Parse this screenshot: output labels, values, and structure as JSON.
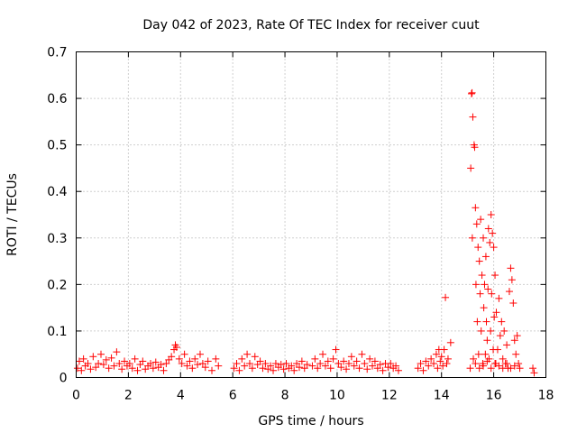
{
  "chart_data": {
    "type": "scatter",
    "title": "Day 042 of 2023, Rate Of TEC Index for receiver cuut",
    "xlabel": "GPS time / hours",
    "ylabel": "ROTI / TECUs",
    "xlim": [
      0,
      18
    ],
    "ylim": [
      0,
      0.7
    ],
    "xticks": [
      0,
      2,
      4,
      6,
      8,
      10,
      12,
      14,
      16,
      18
    ],
    "yticks": [
      0,
      0.1,
      0.2,
      0.3,
      0.4,
      0.5,
      0.6,
      0.7
    ],
    "xtick_labels": [
      "0",
      "2",
      "4",
      "6",
      "8",
      "10",
      "12",
      "14",
      "16",
      "18"
    ],
    "ytick_labels": [
      "0",
      "0.1",
      "0.2",
      "0.3",
      "0.4",
      "0.5",
      "0.6",
      "0.7"
    ],
    "grid": true,
    "marker": "+",
    "color": "#ff0000",
    "series": [
      {
        "name": "ROTI",
        "points": [
          [
            0.05,
            0.02
          ],
          [
            0.12,
            0.035
          ],
          [
            0.2,
            0.015
          ],
          [
            0.28,
            0.04
          ],
          [
            0.35,
            0.025
          ],
          [
            0.45,
            0.03
          ],
          [
            0.55,
            0.018
          ],
          [
            0.65,
            0.045
          ],
          [
            0.75,
            0.022
          ],
          [
            0.85,
            0.03
          ],
          [
            0.95,
            0.05
          ],
          [
            1.05,
            0.028
          ],
          [
            1.15,
            0.038
          ],
          [
            1.25,
            0.02
          ],
          [
            1.35,
            0.042
          ],
          [
            1.45,
            0.025
          ],
          [
            1.55,
            0.055
          ],
          [
            1.65,
            0.03
          ],
          [
            1.75,
            0.018
          ],
          [
            1.85,
            0.035
          ],
          [
            1.95,
            0.025
          ],
          [
            2.05,
            0.03
          ],
          [
            2.15,
            0.02
          ],
          [
            2.25,
            0.04
          ],
          [
            2.35,
            0.015
          ],
          [
            2.45,
            0.028
          ],
          [
            2.55,
            0.035
          ],
          [
            2.65,
            0.018
          ],
          [
            2.75,
            0.025
          ],
          [
            2.85,
            0.03
          ],
          [
            2.95,
            0.02
          ],
          [
            3.05,
            0.033
          ],
          [
            3.15,
            0.022
          ],
          [
            3.25,
            0.028
          ],
          [
            3.35,
            0.015
          ],
          [
            3.45,
            0.03
          ],
          [
            3.55,
            0.038
          ],
          [
            3.65,
            0.045
          ],
          [
            3.75,
            0.06
          ],
          [
            3.8,
            0.07
          ],
          [
            3.85,
            0.065
          ],
          [
            3.95,
            0.04
          ],
          [
            4.05,
            0.03
          ],
          [
            4.15,
            0.05
          ],
          [
            4.25,
            0.025
          ],
          [
            4.35,
            0.035
          ],
          [
            4.45,
            0.02
          ],
          [
            4.55,
            0.04
          ],
          [
            4.65,
            0.028
          ],
          [
            4.75,
            0.05
          ],
          [
            4.85,
            0.03
          ],
          [
            4.95,
            0.022
          ],
          [
            5.05,
            0.035
          ],
          [
            5.2,
            0.015
          ],
          [
            5.35,
            0.04
          ],
          [
            5.45,
            0.025
          ],
          [
            6.05,
            0.02
          ],
          [
            6.15,
            0.03
          ],
          [
            6.25,
            0.015
          ],
          [
            6.35,
            0.04
          ],
          [
            6.45,
            0.025
          ],
          [
            6.55,
            0.05
          ],
          [
            6.65,
            0.03
          ],
          [
            6.75,
            0.02
          ],
          [
            6.85,
            0.045
          ],
          [
            6.95,
            0.028
          ],
          [
            7.05,
            0.035
          ],
          [
            7.15,
            0.02
          ],
          [
            7.25,
            0.03
          ],
          [
            7.35,
            0.018
          ],
          [
            7.45,
            0.025
          ],
          [
            7.55,
            0.015
          ],
          [
            7.65,
            0.03
          ],
          [
            7.75,
            0.022
          ],
          [
            7.85,
            0.028
          ],
          [
            7.95,
            0.018
          ],
          [
            8.05,
            0.03
          ],
          [
            8.15,
            0.02
          ],
          [
            8.25,
            0.025
          ],
          [
            8.35,
            0.015
          ],
          [
            8.45,
            0.03
          ],
          [
            8.55,
            0.022
          ],
          [
            8.65,
            0.035
          ],
          [
            8.75,
            0.02
          ],
          [
            8.85,
            0.028
          ],
          [
            9.05,
            0.025
          ],
          [
            9.15,
            0.04
          ],
          [
            9.25,
            0.02
          ],
          [
            9.35,
            0.03
          ],
          [
            9.45,
            0.05
          ],
          [
            9.55,
            0.025
          ],
          [
            9.65,
            0.035
          ],
          [
            9.75,
            0.02
          ],
          [
            9.85,
            0.04
          ],
          [
            9.95,
            0.06
          ],
          [
            10.05,
            0.03
          ],
          [
            10.15,
            0.022
          ],
          [
            10.25,
            0.035
          ],
          [
            10.35,
            0.018
          ],
          [
            10.45,
            0.03
          ],
          [
            10.55,
            0.045
          ],
          [
            10.65,
            0.025
          ],
          [
            10.75,
            0.035
          ],
          [
            10.85,
            0.02
          ],
          [
            10.95,
            0.05
          ],
          [
            11.05,
            0.03
          ],
          [
            11.15,
            0.018
          ],
          [
            11.25,
            0.04
          ],
          [
            11.35,
            0.025
          ],
          [
            11.45,
            0.035
          ],
          [
            11.55,
            0.02
          ],
          [
            11.65,
            0.028
          ],
          [
            11.75,
            0.015
          ],
          [
            11.85,
            0.03
          ],
          [
            11.95,
            0.022
          ],
          [
            12.05,
            0.03
          ],
          [
            12.15,
            0.02
          ],
          [
            12.25,
            0.025
          ],
          [
            12.35,
            0.015
          ],
          [
            13.1,
            0.02
          ],
          [
            13.2,
            0.03
          ],
          [
            13.3,
            0.015
          ],
          [
            13.4,
            0.035
          ],
          [
            13.5,
            0.025
          ],
          [
            13.6,
            0.04
          ],
          [
            13.7,
            0.03
          ],
          [
            13.8,
            0.05
          ],
          [
            13.85,
            0.02
          ],
          [
            13.9,
            0.06
          ],
          [
            13.95,
            0.035
          ],
          [
            14.0,
            0.045
          ],
          [
            14.05,
            0.025
          ],
          [
            14.1,
            0.06
          ],
          [
            14.15,
            0.172
          ],
          [
            14.2,
            0.03
          ],
          [
            14.25,
            0.04
          ],
          [
            14.35,
            0.075
          ],
          [
            15.1,
            0.02
          ],
          [
            15.12,
            0.45
          ],
          [
            15.15,
            0.61
          ],
          [
            15.17,
            0.612
          ],
          [
            15.18,
            0.3
          ],
          [
            15.2,
            0.56
          ],
          [
            15.22,
            0.04
          ],
          [
            15.25,
            0.5
          ],
          [
            15.27,
            0.495
          ],
          [
            15.3,
            0.365
          ],
          [
            15.32,
            0.2
          ],
          [
            15.35,
            0.33
          ],
          [
            15.37,
            0.12
          ],
          [
            15.4,
            0.28
          ],
          [
            15.42,
            0.05
          ],
          [
            15.45,
            0.25
          ],
          [
            15.48,
            0.18
          ],
          [
            15.5,
            0.34
          ],
          [
            15.52,
            0.1
          ],
          [
            15.55,
            0.22
          ],
          [
            15.58,
            0.03
          ],
          [
            15.6,
            0.3
          ],
          [
            15.62,
            0.15
          ],
          [
            15.65,
            0.2
          ],
          [
            15.68,
            0.05
          ],
          [
            15.7,
            0.26
          ],
          [
            15.72,
            0.12
          ],
          [
            15.75,
            0.08
          ],
          [
            15.78,
            0.19
          ],
          [
            15.8,
            0.32
          ],
          [
            15.82,
            0.04
          ],
          [
            15.85,
            0.29
          ],
          [
            15.88,
            0.1
          ],
          [
            15.9,
            0.35
          ],
          [
            15.92,
            0.18
          ],
          [
            15.95,
            0.31
          ],
          [
            15.98,
            0.06
          ],
          [
            16.0,
            0.28
          ],
          [
            16.02,
            0.13
          ],
          [
            16.05,
            0.22
          ],
          [
            16.08,
            0.03
          ],
          [
            16.1,
            0.14
          ],
          [
            16.15,
            0.06
          ],
          [
            16.2,
            0.17
          ],
          [
            16.25,
            0.09
          ],
          [
            16.3,
            0.12
          ],
          [
            16.35,
            0.04
          ],
          [
            16.4,
            0.1
          ],
          [
            16.45,
            0.03
          ],
          [
            16.5,
            0.07
          ],
          [
            16.55,
            0.02
          ],
          [
            16.6,
            0.185
          ],
          [
            16.65,
            0.235
          ],
          [
            16.7,
            0.21
          ],
          [
            16.75,
            0.16
          ],
          [
            16.8,
            0.08
          ],
          [
            16.85,
            0.05
          ],
          [
            16.9,
            0.09
          ],
          [
            16.95,
            0.03
          ],
          [
            17.0,
            0.02
          ],
          [
            15.3,
            0.03
          ],
          [
            15.45,
            0.02
          ],
          [
            15.6,
            0.025
          ],
          [
            15.75,
            0.035
          ],
          [
            15.9,
            0.02
          ],
          [
            16.05,
            0.03
          ],
          [
            16.2,
            0.025
          ],
          [
            16.35,
            0.02
          ],
          [
            16.5,
            0.03
          ],
          [
            16.65,
            0.02
          ],
          [
            16.8,
            0.025
          ],
          [
            17.5,
            0.02
          ],
          [
            17.55,
            0.01
          ]
        ]
      }
    ]
  }
}
